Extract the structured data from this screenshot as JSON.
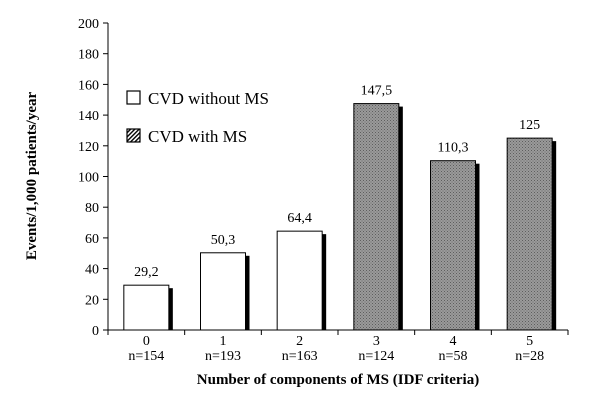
{
  "chart_data": {
    "type": "bar",
    "title": "",
    "xlabel": "Number of components of MS (IDF criteria)",
    "ylabel": "Events/1,000 patients/year",
    "ylim": [
      0,
      200
    ],
    "yticks": [
      0,
      20,
      40,
      60,
      80,
      100,
      120,
      140,
      160,
      180,
      200
    ],
    "grid": false,
    "legend_position": "upper-left",
    "categories": [
      "0",
      "1",
      "2",
      "3",
      "4",
      "5"
    ],
    "sublabels": [
      "n=154",
      "n=193",
      "n=163",
      "n=124",
      "n=58",
      "n=28"
    ],
    "values": [
      29.2,
      50.3,
      64.4,
      147.5,
      110.3,
      125
    ],
    "data_labels": [
      "29,2",
      "50,3",
      "64,4",
      "147,5",
      "110,3",
      "125"
    ],
    "bar_groups": [
      "without",
      "without",
      "without",
      "with",
      "with",
      "with"
    ],
    "legend": [
      {
        "key": "without",
        "label": "CVD without MS",
        "fill": "#ffffff"
      },
      {
        "key": "with",
        "label": "CVD with MS",
        "fill": "#8c8c8c"
      }
    ]
  }
}
